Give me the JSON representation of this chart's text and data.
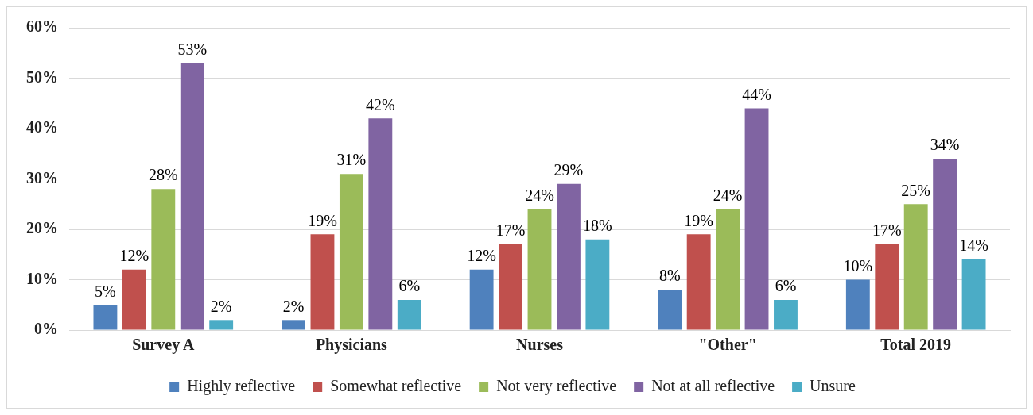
{
  "chart_data": {
    "type": "bar",
    "categories": [
      "Survey A",
      "Physicians",
      "Nurses",
      "\"Other\"",
      "Total 2019"
    ],
    "series": [
      {
        "name": "Highly reflective",
        "color": "#4f81bd",
        "values": [
          5,
          2,
          12,
          8,
          10
        ],
        "value_labels": [
          "5%",
          "2%",
          "12%",
          "8%",
          "10%"
        ]
      },
      {
        "name": "Somewhat reflective",
        "color": "#c0504d",
        "values": [
          12,
          19,
          17,
          19,
          17
        ],
        "value_labels": [
          "12%",
          "19%",
          "17%",
          "19%",
          "17%"
        ]
      },
      {
        "name": "Not very reflective",
        "color": "#9bbb59",
        "values": [
          28,
          31,
          24,
          24,
          25
        ],
        "value_labels": [
          "28%",
          "31%",
          "24%",
          "24%",
          "25%"
        ]
      },
      {
        "name": "Not at all reflective",
        "color": "#8064a2",
        "values": [
          53,
          42,
          29,
          44,
          34
        ],
        "value_labels": [
          "53%",
          "42%",
          "29%",
          "44%",
          "34%"
        ]
      },
      {
        "name": "Unsure",
        "color": "#4bacc6",
        "values": [
          2,
          6,
          18,
          6,
          14
        ],
        "value_labels": [
          "2%",
          "6%",
          "18%",
          "6%",
          "14%"
        ]
      }
    ],
    "ylim": [
      0,
      60
    ],
    "yticks": [
      {
        "value": 0,
        "label": "0%"
      },
      {
        "value": 10,
        "label": "10%"
      },
      {
        "value": 20,
        "label": "20%"
      },
      {
        "value": 30,
        "label": "30%"
      },
      {
        "value": 40,
        "label": "40%"
      },
      {
        "value": 50,
        "label": "50%"
      },
      {
        "value": 60,
        "label": "60%"
      }
    ],
    "grid": "y",
    "legend": "bottom"
  }
}
